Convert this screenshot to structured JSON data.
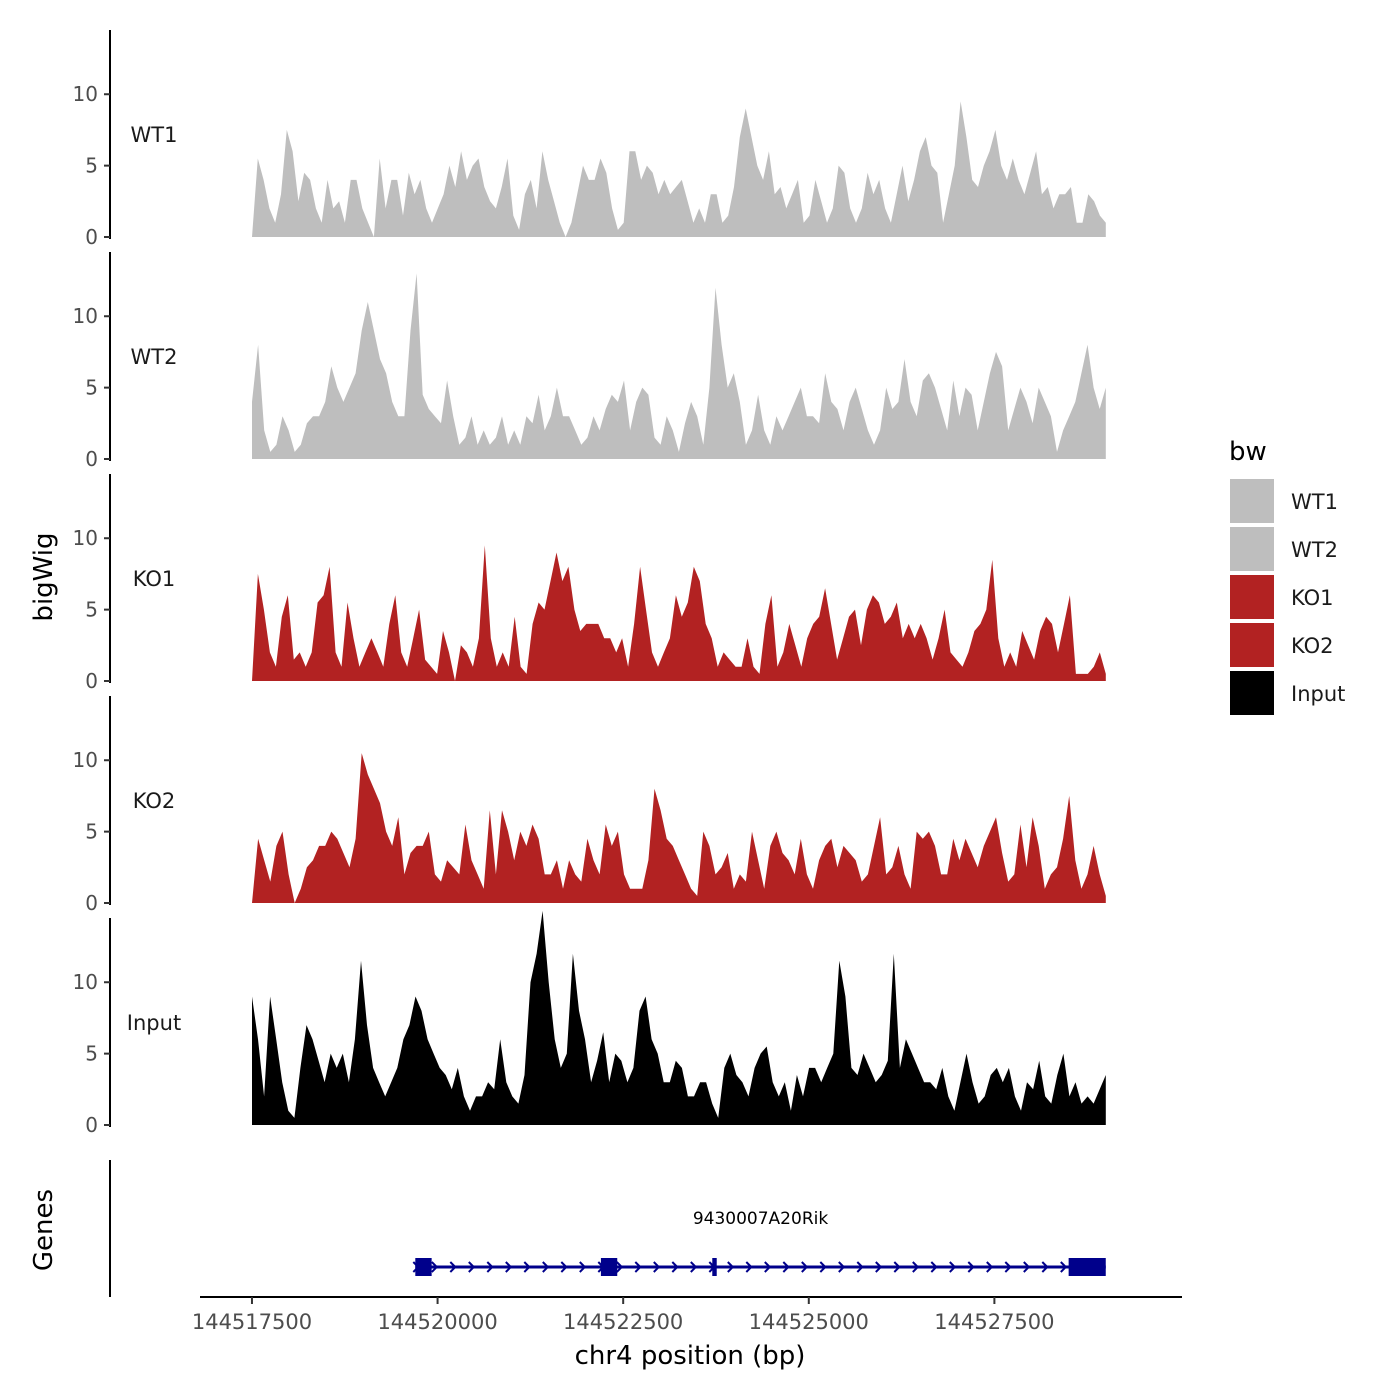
{
  "chart_data": {
    "type": "area",
    "title": "",
    "ylabel": "bigWig",
    "genes_label": "Genes",
    "xlabel": "chr4 position (bp)",
    "xlim": [
      144516800,
      144530000
    ],
    "ylim": [
      0,
      14.5
    ],
    "x_ticks": [
      144517500,
      144520000,
      144522500,
      144525000,
      144527500
    ],
    "x_tick_labels": [
      "144517500",
      "144520000",
      "144522500",
      "144525000",
      "144527500"
    ],
    "y_ticks": [
      0,
      5,
      10
    ],
    "y_tick_labels": [
      "0",
      "5",
      "10"
    ],
    "legend": {
      "title": "bw",
      "position": "right",
      "entries": [
        {
          "label": "WT1",
          "color": "#bebebe"
        },
        {
          "label": "WT2",
          "color": "#bebebe"
        },
        {
          "label": "KO1",
          "color": "#b22222"
        },
        {
          "label": "KO2",
          "color": "#b22222"
        },
        {
          "label": "Input",
          "color": "#000000"
        }
      ]
    },
    "series": [
      {
        "name": "WT1",
        "color": "#bebebe",
        "x_start": 144517500,
        "x_end": 144529000,
        "values": [
          0,
          5.5,
          4,
          2,
          1,
          3,
          7.5,
          6,
          2.5,
          4.5,
          4,
          2,
          1,
          4,
          2,
          2.5,
          1,
          4,
          4,
          2,
          1,
          0,
          5.5,
          2,
          4,
          4,
          1.5,
          4.5,
          3,
          4,
          2,
          1,
          2,
          3,
          5,
          3.5,
          6,
          4,
          5,
          5.5,
          3.5,
          2.5,
          2,
          3.5,
          5.5,
          1.5,
          0.5,
          3,
          4,
          2,
          6,
          4,
          2.5,
          1,
          0,
          1,
          3,
          5,
          4,
          4,
          5.5,
          4.5,
          2,
          0.5,
          1,
          6,
          6,
          4,
          5,
          4.5,
          3,
          4,
          3,
          3.5,
          4,
          2.5,
          1,
          2,
          1,
          3,
          3,
          1,
          1.5,
          3.5,
          7,
          9,
          7,
          5,
          4,
          6,
          3,
          3.5,
          2,
          3,
          4,
          1,
          1.5,
          4,
          2.5,
          1,
          2,
          5,
          4.5,
          2,
          1,
          2,
          4.5,
          3,
          4,
          2,
          1,
          3,
          5,
          2.5,
          4,
          6,
          7,
          5,
          4.5,
          1,
          3,
          5,
          9.5,
          7,
          4,
          3.5,
          5,
          6,
          7.5,
          5,
          4,
          5.5,
          4,
          3,
          4.5,
          6,
          3,
          3.5,
          2,
          3,
          3,
          3.5,
          1,
          1,
          3,
          2.5,
          1.5,
          1
        ]
      },
      {
        "name": "WT2",
        "color": "#bebebe",
        "x_start": 144517500,
        "x_end": 144529000,
        "values": [
          4,
          8,
          2,
          0.5,
          1,
          3,
          2,
          0.5,
          1,
          2.5,
          3,
          3,
          4,
          6.5,
          5,
          4,
          5,
          6,
          9,
          11,
          9,
          7,
          6,
          4,
          3,
          3,
          9,
          13,
          4.5,
          3.5,
          3,
          2.5,
          5.5,
          3,
          1,
          1.5,
          3,
          1,
          2,
          1,
          1.5,
          3,
          1,
          2,
          1,
          3,
          2.5,
          4.5,
          2,
          3,
          5,
          3,
          3,
          2,
          1,
          1.5,
          3,
          2,
          3.5,
          4.5,
          4,
          5.5,
          2,
          4,
          5,
          4.5,
          1.5,
          1,
          3,
          2,
          0.5,
          2.5,
          4,
          3,
          1,
          5,
          12,
          8,
          5,
          6,
          4,
          1,
          2,
          4.5,
          2,
          1,
          3,
          2,
          3,
          4,
          5,
          3,
          3,
          2.5,
          6,
          4,
          3.5,
          2,
          4,
          5,
          3.5,
          2,
          1,
          2,
          5,
          3.5,
          4,
          7,
          4,
          3,
          5.5,
          6,
          5,
          3.5,
          2,
          5.5,
          3,
          5,
          4.5,
          2,
          4,
          6,
          7.5,
          6.5,
          2,
          3.5,
          5,
          4,
          2.5,
          5,
          4,
          3,
          0.5,
          2,
          3,
          4,
          6,
          8,
          5,
          3.5,
          5
        ]
      },
      {
        "name": "KO1",
        "color": "#b22222",
        "x_start": 144517500,
        "x_end": 144529000,
        "values": [
          0,
          7.5,
          5,
          2,
          1,
          4.5,
          6,
          1.5,
          2,
          1,
          2,
          5.5,
          6,
          8,
          2,
          1,
          5.5,
          3,
          1,
          2,
          3,
          2,
          1,
          4,
          6,
          2,
          1,
          3,
          5,
          1.5,
          1,
          0.5,
          3.5,
          2,
          0,
          2.5,
          2,
          1,
          3,
          9.5,
          3,
          1,
          2,
          1,
          4.5,
          1,
          0.5,
          4,
          5.5,
          5,
          7,
          9,
          7,
          8,
          5,
          3.5,
          4,
          4,
          4,
          3,
          3,
          2,
          3,
          1,
          4,
          8,
          5,
          2,
          1,
          2,
          3,
          6,
          4.5,
          5.5,
          8,
          7,
          4,
          3,
          1,
          2,
          1.5,
          1,
          1,
          3,
          1,
          0.5,
          4,
          6,
          1,
          2,
          4,
          2.5,
          1,
          3,
          4,
          4.5,
          6.5,
          4,
          1.5,
          3,
          4.5,
          5,
          2.5,
          5,
          6,
          5.5,
          4,
          4.5,
          5.5,
          3,
          4,
          3,
          4,
          3,
          1.5,
          3,
          5,
          2,
          1.5,
          1,
          2,
          3.5,
          4,
          5,
          8.5,
          3,
          1,
          2,
          1,
          3.5,
          2.5,
          1.5,
          3.5,
          4.5,
          4,
          2,
          4,
          6,
          0.5,
          0.5,
          0.5,
          1,
          2,
          0.5
        ]
      },
      {
        "name": "KO2",
        "color": "#b22222",
        "x_start": 144517500,
        "x_end": 144529000,
        "values": [
          0,
          4.5,
          3,
          1.5,
          4,
          5,
          2,
          0,
          1,
          2.5,
          3,
          4,
          4,
          5,
          4.5,
          3.5,
          2.5,
          4.5,
          10.5,
          9,
          8,
          7,
          5,
          4,
          6,
          2,
          3.5,
          4,
          4,
          5,
          2,
          1.5,
          3,
          2.5,
          2,
          5.5,
          3,
          2,
          1,
          6.5,
          2,
          6.5,
          5,
          3,
          5,
          4,
          5.5,
          4.5,
          2,
          2,
          3,
          1,
          3,
          2,
          1.5,
          4.5,
          3,
          2,
          5.5,
          4,
          5,
          2,
          1,
          1,
          1,
          3,
          8,
          6.5,
          4.5,
          4,
          3,
          2,
          1,
          0.5,
          5,
          4,
          2,
          2.5,
          3.5,
          1,
          2,
          1.5,
          5,
          3,
          1,
          4,
          5,
          3.5,
          3,
          2,
          4.5,
          2,
          1,
          3,
          4,
          4.5,
          2.5,
          4,
          3.5,
          3,
          1.5,
          2,
          4,
          6,
          2,
          2.5,
          4,
          2,
          1,
          5,
          4.5,
          5,
          4,
          2,
          2,
          4.5,
          3,
          4.5,
          3.5,
          2.5,
          4,
          5,
          6,
          3.5,
          1.5,
          2,
          5.5,
          2.5,
          6,
          4,
          1,
          2,
          2.5,
          4.5,
          7.5,
          3,
          1,
          2,
          4,
          2,
          0.5
        ]
      },
      {
        "name": "Input",
        "color": "#000000",
        "x_start": 144517500,
        "x_end": 144529000,
        "values": [
          9,
          6,
          2,
          9,
          6,
          3,
          1,
          0.5,
          4,
          7,
          6,
          4.5,
          3,
          5,
          4,
          5,
          3,
          6,
          11.5,
          7,
          4,
          3,
          2,
          3,
          4,
          6,
          7,
          9,
          8,
          6,
          5,
          4,
          3.5,
          2.5,
          4,
          2,
          1,
          2,
          2,
          3,
          2.5,
          6,
          3,
          2,
          1.5,
          3.5,
          10,
          12,
          15,
          10,
          6,
          4,
          5,
          12,
          8,
          6,
          3,
          4.5,
          6.5,
          3,
          5,
          4.5,
          3,
          4,
          8,
          9,
          6,
          5,
          3,
          3,
          4.5,
          4,
          2,
          2,
          3,
          3,
          1.5,
          0.5,
          4,
          5,
          3.5,
          3,
          2,
          4,
          5,
          5.5,
          3,
          2,
          3,
          1,
          3.5,
          2,
          4,
          4,
          3,
          4,
          5,
          11.5,
          9,
          4,
          3.5,
          5,
          4,
          3,
          3.5,
          4.5,
          12,
          4,
          6,
          5,
          4,
          3,
          3,
          2.5,
          4,
          2,
          1,
          3,
          5,
          3,
          1.5,
          2,
          3.5,
          4,
          3,
          4,
          2,
          1,
          3,
          2.5,
          4.5,
          2,
          1.5,
          3.5,
          5,
          2,
          3,
          1.5,
          2,
          1.5,
          2.5,
          3.5
        ]
      }
    ],
    "gene": {
      "name": "9430007A20Rik",
      "strand": "+",
      "start": 144519700,
      "end": 144529000,
      "color": "#00008b",
      "exons": [
        [
          144519700,
          144519920
        ],
        [
          144522200,
          144522420
        ],
        [
          144523700,
          144523760
        ],
        [
          144528500,
          144529000
        ]
      ]
    }
  }
}
